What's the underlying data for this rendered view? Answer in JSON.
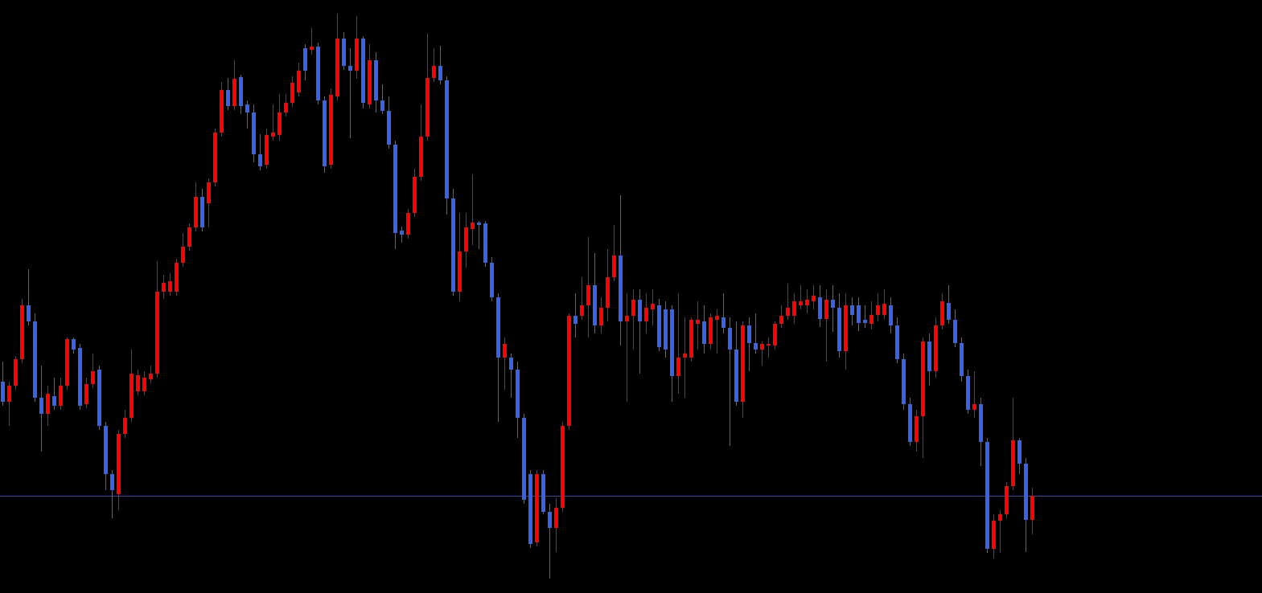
{
  "chart_data": {
    "type": "candlestick",
    "up_color": "#ff0000",
    "down_color": "#3a62e6",
    "background": "#000000",
    "ylim": [
      0,
      738
    ],
    "reference_line": {
      "value": 121,
      "color": "#3b4aa0"
    },
    "candles": [
      [
        263,
        288,
        233,
        238
      ],
      [
        238,
        263,
        208,
        258
      ],
      [
        258,
        295,
        253,
        291
      ],
      [
        291,
        366,
        286,
        358
      ],
      [
        358,
        403,
        333,
        338
      ],
      [
        338,
        348,
        238,
        243
      ],
      [
        243,
        283,
        176,
        223
      ],
      [
        223,
        258,
        208,
        248
      ],
      [
        245,
        268,
        228,
        233
      ],
      [
        233,
        268,
        228,
        258
      ],
      [
        258,
        318,
        253,
        316
      ],
      [
        316,
        318,
        298,
        303
      ],
      [
        305,
        310,
        228,
        233
      ],
      [
        235,
        268,
        230,
        260
      ],
      [
        260,
        298,
        255,
        276
      ],
      [
        278,
        283,
        203,
        208
      ],
      [
        208,
        213,
        128,
        148
      ],
      [
        148,
        153,
        93,
        128
      ],
      [
        123,
        203,
        103,
        198
      ],
      [
        198,
        228,
        193,
        218
      ],
      [
        218,
        303,
        213,
        273
      ],
      [
        251,
        278,
        246,
        271
      ],
      [
        251,
        276,
        246,
        268
      ],
      [
        266,
        283,
        261,
        273
      ],
      [
        273,
        413,
        268,
        375
      ],
      [
        375,
        396,
        366,
        386
      ],
      [
        375,
        398,
        370,
        388
      ],
      [
        375,
        416,
        370,
        411
      ],
      [
        411,
        448,
        406,
        431
      ],
      [
        431,
        460,
        426,
        455
      ],
      [
        455,
        511,
        450,
        493
      ],
      [
        493,
        503,
        450,
        455
      ],
      [
        485,
        516,
        455,
        511
      ],
      [
        511,
        578,
        506,
        573
      ],
      [
        573,
        636,
        568,
        626
      ],
      [
        626,
        641,
        601,
        606
      ],
      [
        606,
        663,
        601,
        640
      ],
      [
        642,
        645,
        596,
        606
      ],
      [
        608,
        613,
        578,
        598
      ],
      [
        598,
        608,
        536,
        546
      ],
      [
        546,
        571,
        526,
        531
      ],
      [
        533,
        578,
        528,
        570
      ],
      [
        568,
        608,
        563,
        573
      ],
      [
        570,
        621,
        563,
        598
      ],
      [
        598,
        621,
        593,
        610
      ],
      [
        610,
        643,
        605,
        635
      ],
      [
        623,
        660,
        618,
        650
      ],
      [
        678,
        683,
        638,
        650
      ],
      [
        676,
        703,
        670,
        680
      ],
      [
        680,
        685,
        608,
        613
      ],
      [
        613,
        618,
        523,
        531
      ],
      [
        533,
        628,
        528,
        620
      ],
      [
        618,
        721,
        613,
        690
      ],
      [
        690,
        698,
        651,
        656
      ],
      [
        656,
        678,
        566,
        650
      ],
      [
        650,
        718,
        640,
        690
      ],
      [
        690,
        693,
        603,
        610
      ],
      [
        608,
        683,
        603,
        663
      ],
      [
        663,
        673,
        598,
        613
      ],
      [
        613,
        633,
        596,
        600
      ],
      [
        600,
        618,
        553,
        558
      ],
      [
        558,
        563,
        428,
        448
      ],
      [
        451,
        456,
        436,
        446
      ],
      [
        446,
        478,
        441,
        473
      ],
      [
        473,
        528,
        468,
        518
      ],
      [
        518,
        608,
        513,
        568
      ],
      [
        568,
        696,
        563,
        641
      ],
      [
        641,
        678,
        636,
        656
      ],
      [
        656,
        681,
        633,
        638
      ],
      [
        638,
        643,
        471,
        491
      ],
      [
        491,
        503,
        370,
        375
      ],
      [
        375,
        473,
        363,
        425
      ],
      [
        425,
        473,
        405,
        455
      ],
      [
        453,
        521,
        433,
        461
      ],
      [
        461,
        463,
        428,
        458
      ],
      [
        460,
        463,
        406,
        411
      ],
      [
        411,
        418,
        363,
        368
      ],
      [
        368,
        373,
        213,
        293
      ],
      [
        293,
        318,
        253,
        310
      ],
      [
        293,
        298,
        243,
        278
      ],
      [
        278,
        288,
        193,
        218
      ],
      [
        218,
        223,
        111,
        116
      ],
      [
        148,
        153,
        56,
        61
      ],
      [
        63,
        153,
        58,
        148
      ],
      [
        148,
        153,
        98,
        101
      ],
      [
        101,
        111,
        18,
        81
      ],
      [
        81,
        118,
        51,
        106
      ],
      [
        106,
        213,
        101,
        208
      ],
      [
        208,
        348,
        203,
        345
      ],
      [
        345,
        373,
        318,
        335
      ],
      [
        345,
        393,
        340,
        358
      ],
      [
        358,
        443,
        318,
        383
      ],
      [
        383,
        423,
        323,
        333
      ],
      [
        333,
        368,
        323,
        355
      ],
      [
        355,
        428,
        338,
        393
      ],
      [
        393,
        458,
        388,
        420
      ],
      [
        420,
        495,
        308,
        338
      ],
      [
        338,
        373,
        238,
        345
      ],
      [
        345,
        378,
        303,
        365
      ],
      [
        365,
        378,
        273,
        338
      ],
      [
        338,
        373,
        323,
        355
      ],
      [
        353,
        378,
        333,
        360
      ],
      [
        358,
        366,
        301,
        306
      ],
      [
        353,
        363,
        293,
        303
      ],
      [
        353,
        358,
        238,
        270
      ],
      [
        270,
        373,
        248,
        293
      ],
      [
        293,
        343,
        243,
        298
      ],
      [
        293,
        343,
        288,
        340
      ],
      [
        335,
        363,
        303,
        340
      ],
      [
        338,
        358,
        298,
        310
      ],
      [
        310,
        348,
        303,
        343
      ],
      [
        340,
        353,
        298,
        345
      ],
      [
        343,
        373,
        323,
        330
      ],
      [
        330,
        343,
        183,
        303
      ],
      [
        303,
        338,
        233,
        238
      ],
      [
        238,
        338,
        218,
        333
      ],
      [
        333,
        343,
        276,
        311
      ],
      [
        311,
        348,
        298,
        303
      ],
      [
        303,
        313,
        283,
        310
      ],
      [
        308,
        318,
        293,
        310
      ],
      [
        308,
        338,
        303,
        335
      ],
      [
        335,
        358,
        330,
        345
      ],
      [
        345,
        385,
        340,
        355
      ],
      [
        345,
        373,
        335,
        363
      ],
      [
        358,
        383,
        353,
        363
      ],
      [
        358,
        378,
        348,
        365
      ],
      [
        363,
        383,
        353,
        370
      ],
      [
        368,
        383,
        331,
        341
      ],
      [
        341,
        378,
        288,
        365
      ],
      [
        365,
        383,
        325,
        355
      ],
      [
        355,
        373,
        293,
        301
      ],
      [
        301,
        373,
        278,
        358
      ],
      [
        358,
        368,
        333,
        346
      ],
      [
        358,
        368,
        326,
        336
      ],
      [
        340,
        358,
        330,
        336
      ],
      [
        335,
        363,
        328,
        346
      ],
      [
        346,
        373,
        338,
        358
      ],
      [
        346,
        378,
        341,
        360
      ],
      [
        358,
        368,
        323,
        333
      ],
      [
        333,
        343,
        286,
        291
      ],
      [
        291,
        298,
        228,
        235
      ],
      [
        235,
        243,
        183,
        188
      ],
      [
        188,
        228,
        176,
        220
      ],
      [
        220,
        318,
        168,
        313
      ],
      [
        313,
        323,
        258,
        276
      ],
      [
        276,
        343,
        268,
        333
      ],
      [
        333,
        373,
        328,
        363
      ],
      [
        361,
        383,
        335,
        340
      ],
      [
        340,
        353,
        306,
        311
      ],
      [
        311,
        318,
        263,
        270
      ],
      [
        270,
        278,
        223,
        228
      ],
      [
        228,
        276,
        218,
        235
      ],
      [
        235,
        243,
        158,
        188
      ],
      [
        188,
        193,
        50,
        55
      ],
      [
        55,
        98,
        43,
        90
      ],
      [
        90,
        103,
        50,
        98
      ],
      [
        98,
        138,
        93,
        133
      ],
      [
        133,
        243,
        128,
        190
      ],
      [
        190,
        193,
        148,
        161
      ],
      [
        161,
        168,
        51,
        91
      ],
      [
        91,
        131,
        73,
        121
      ]
    ]
  }
}
